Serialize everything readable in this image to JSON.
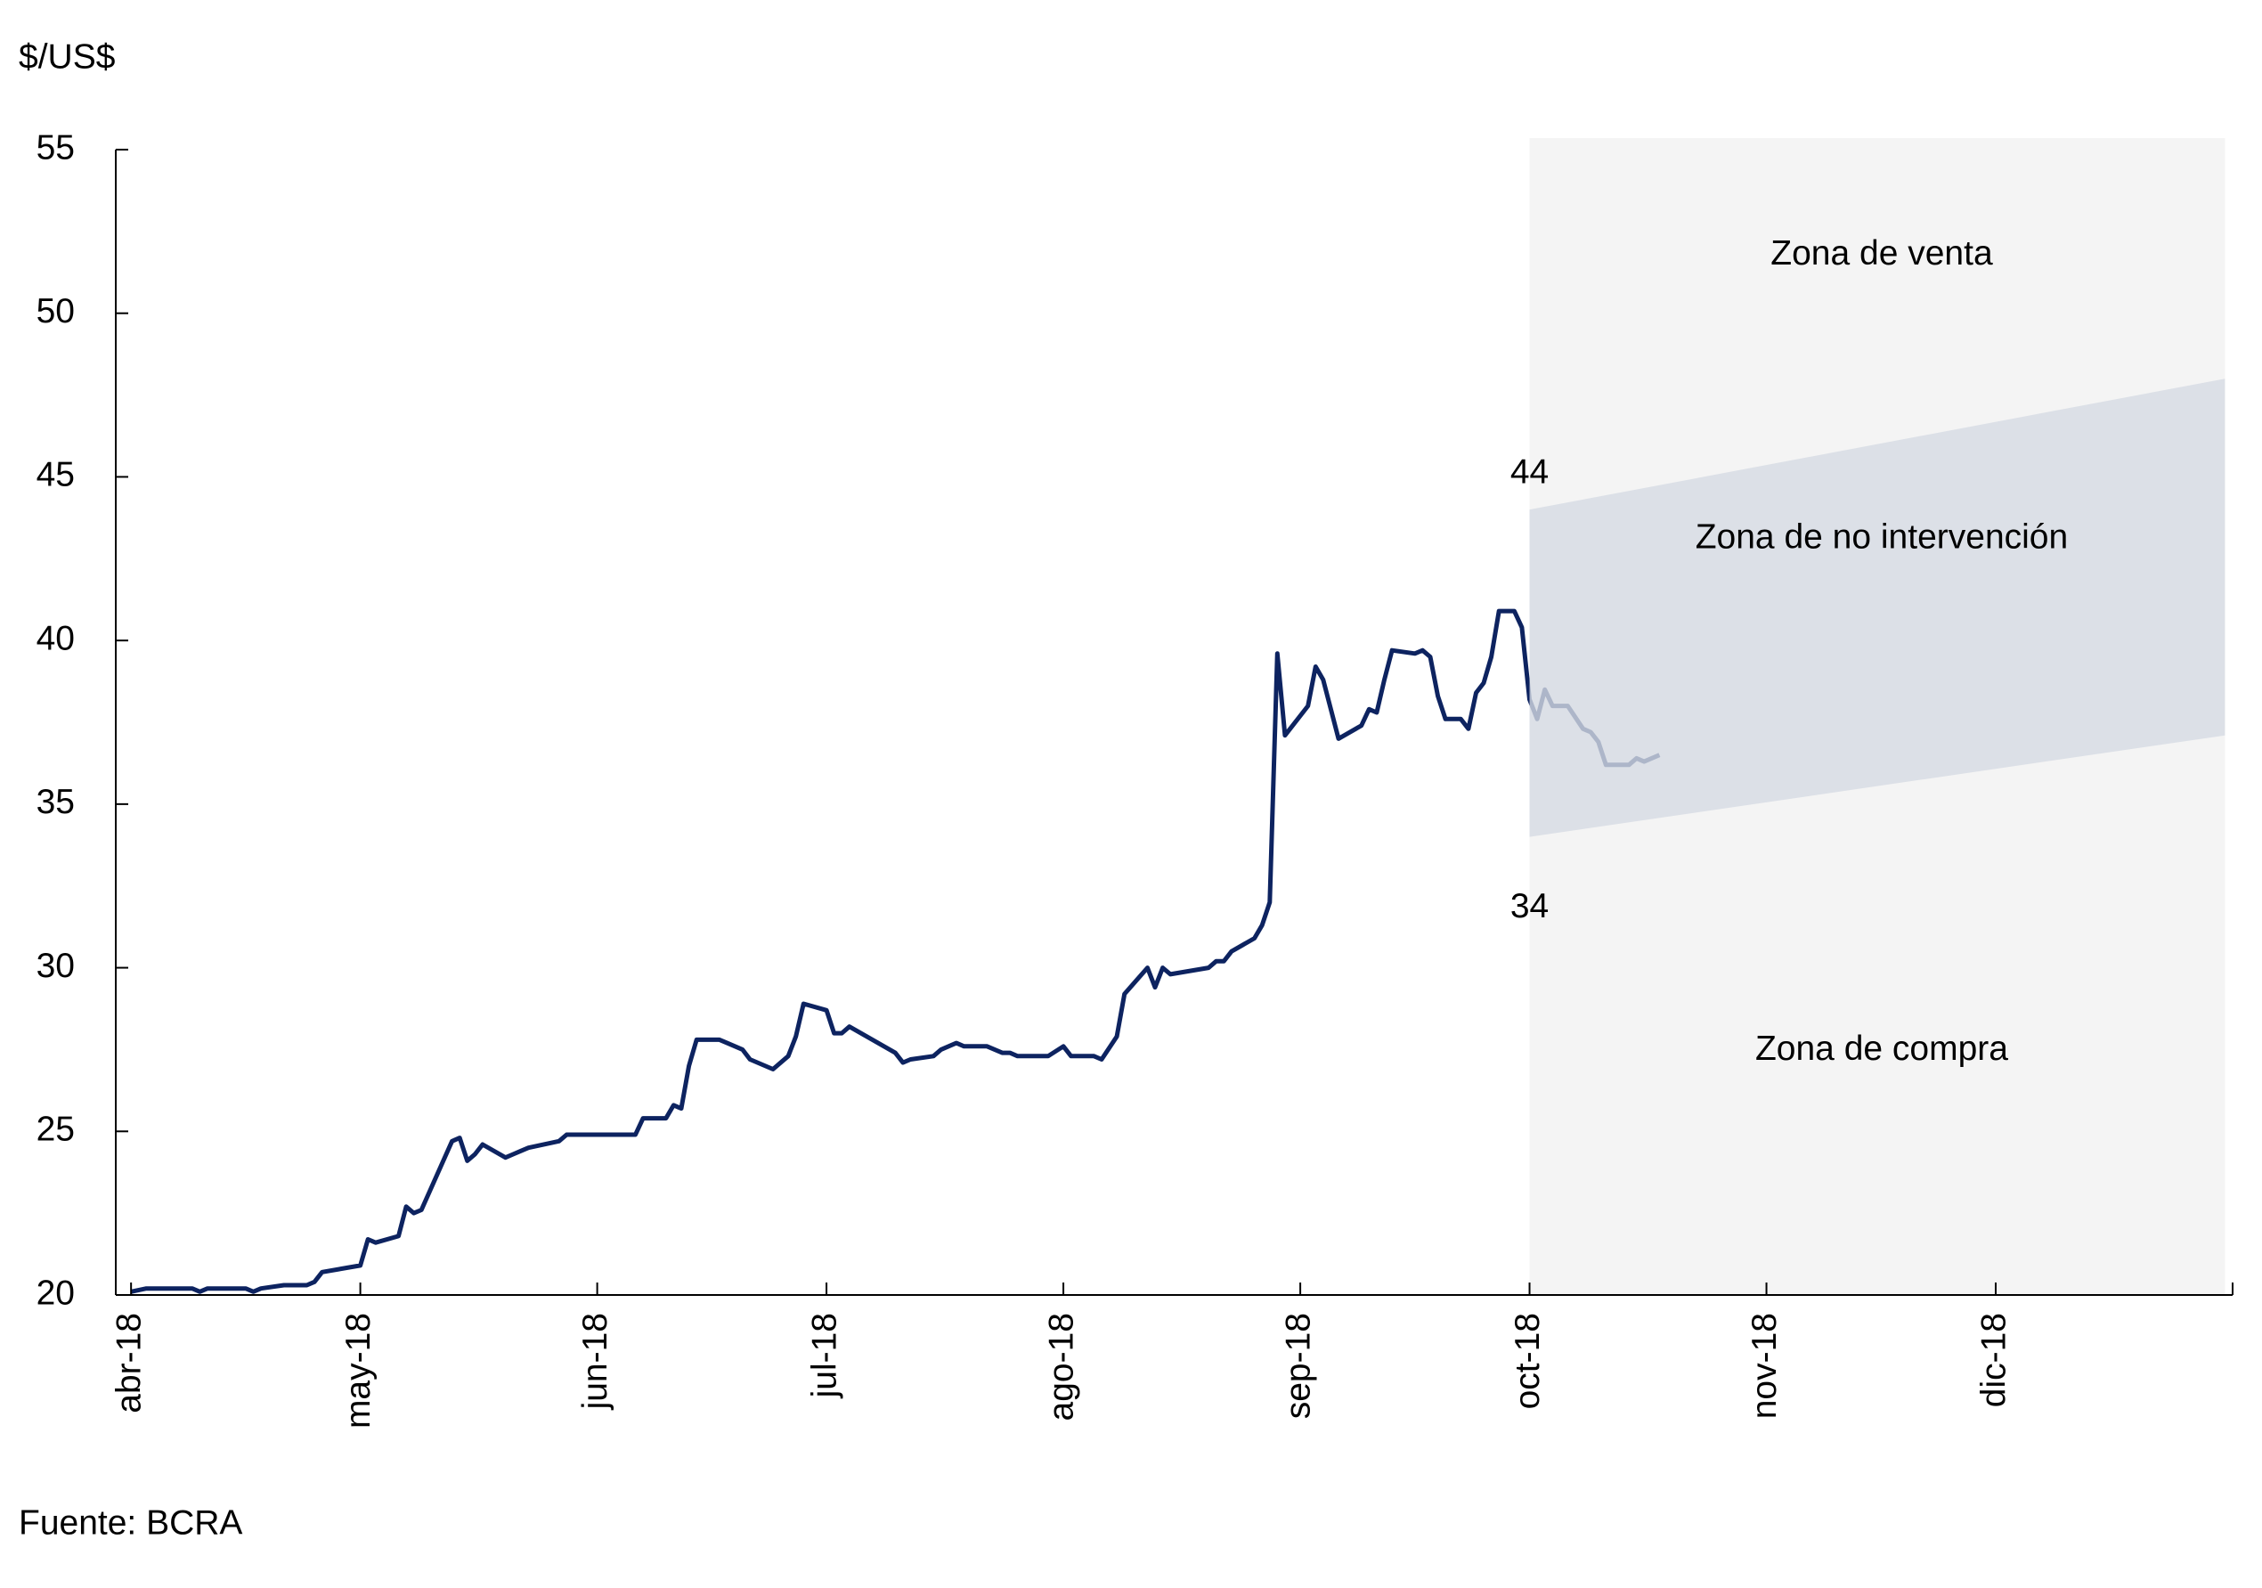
{
  "chart_data": {
    "type": "line",
    "y_axis_label": "$/US$",
    "source": "Fuente: BCRA",
    "x": [
      0,
      2,
      8,
      9,
      10,
      15,
      16,
      17,
      20,
      23,
      24,
      25,
      30,
      31,
      32,
      35,
      36,
      37,
      38,
      42,
      43,
      44,
      45,
      46,
      49,
      50,
      51,
      52,
      56,
      57,
      58,
      59,
      66,
      67,
      70,
      71,
      72,
      73,
      74,
      77,
      78,
      80,
      81,
      84,
      86,
      87,
      88,
      91,
      92,
      93,
      94,
      100,
      101,
      102,
      105,
      106,
      108,
      109,
      112,
      114,
      115,
      116,
      120,
      122,
      123,
      126,
      127,
      129,
      130,
      133,
      134,
      135,
      136,
      141,
      142,
      143,
      144,
      147,
      148,
      149,
      150,
      151,
      154,
      155,
      156,
      157,
      158,
      161,
      162,
      163,
      164,
      165,
      168,
      169,
      170,
      171,
      172,
      174,
      175,
      176,
      177,
      178,
      179,
      181,
      182,
      183,
      184,
      185,
      186,
      188,
      190,
      191,
      192,
      193,
      196,
      197,
      198,
      200
    ],
    "series": [
      {
        "color": "#0d2360",
        "values": [
          20.1,
          20.2,
          20.2,
          20.1,
          20.2,
          20.2,
          20.1,
          20.2,
          20.3,
          20.3,
          20.4,
          20.7,
          20.9,
          21.7,
          21.6,
          21.8,
          22.7,
          22.5,
          22.6,
          24.7,
          24.8,
          24.1,
          24.3,
          24.6,
          24.2,
          24.3,
          24.4,
          24.5,
          24.7,
          24.9,
          24.9,
          24.9,
          24.9,
          25.4,
          25.4,
          25.8,
          25.7,
          27.0,
          27.8,
          27.8,
          27.7,
          27.5,
          27.2,
          26.9,
          27.3,
          27.9,
          28.9,
          28.7,
          28.0,
          28.0,
          28.2,
          27.4,
          27.1,
          27.2,
          27.3,
          27.5,
          27.7,
          27.6,
          27.6,
          27.4,
          27.4,
          27.3,
          27.3,
          27.6,
          27.3,
          27.3,
          27.2,
          27.9,
          29.2,
          30.0,
          29.4,
          30.0,
          29.8,
          30.0,
          30.2,
          30.2,
          30.5,
          30.9,
          31.3,
          32.0,
          39.6,
          37.1,
          38.0,
          39.2,
          38.8,
          37.9,
          37.0,
          37.4,
          37.9,
          37.8,
          38.8,
          39.7,
          39.6,
          39.7,
          39.5,
          38.3,
          37.6,
          37.6,
          37.3,
          38.4,
          38.7,
          39.5,
          40.9,
          40.9,
          40.4,
          38.2,
          37.6,
          38.5,
          38.0,
          38.0,
          37.3,
          37.2,
          36.9,
          36.2,
          36.2,
          36.4,
          36.3,
          36.5
        ]
      }
    ],
    "band": {
      "x": [
        183,
        274
      ],
      "lower": [
        34,
        37.1
      ],
      "upper": [
        44,
        48
      ],
      "color": "#d6dbe3",
      "zone_color": "#f4f4f4"
    },
    "zone_labels": {
      "sell": "Zona de venta",
      "no_intervention": "Zona de no intervención",
      "buy": "Zona de compra"
    },
    "xlim": [
      -2,
      275
    ],
    "xticks": [
      {
        "value": 0,
        "label": "abr-18"
      },
      {
        "value": 30,
        "label": "may-18"
      },
      {
        "value": 61,
        "label": "jun-18"
      },
      {
        "value": 91,
        "label": "jul-18"
      },
      {
        "value": 122,
        "label": "ago-18"
      },
      {
        "value": 153,
        "label": "sep-18"
      },
      {
        "value": 183,
        "label": "oct-18"
      },
      {
        "value": 214,
        "label": "nov-18"
      },
      {
        "value": 244,
        "label": "dic-18"
      }
    ],
    "ylim": [
      20,
      55
    ],
    "yticks": [
      20,
      25,
      30,
      35,
      40,
      45,
      50,
      55
    ]
  }
}
